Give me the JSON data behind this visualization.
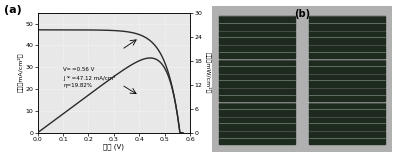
{
  "panel_a_label": "(a)",
  "panel_b_label": "(b)",
  "xlabel": "电压 (V)",
  "ylabel_left": "电流（mA/cm²）",
  "ylabel_right": "功率（mW/cm²）",
  "xlim": [
    0.0,
    0.6
  ],
  "ylim_left": [
    0,
    55
  ],
  "ylim_right": [
    0,
    30
  ],
  "yticks_left": [
    0,
    10,
    20,
    30,
    40,
    50
  ],
  "yticks_right": [
    0,
    6,
    12,
    18,
    24,
    30
  ],
  "xticks": [
    0.0,
    0.1,
    0.2,
    0.3,
    0.4,
    0.5,
    0.6
  ],
  "annotation_line1": "V   =0.56 V",
  "annotation_line2": "J    =47.12 mA/cm²",
  "annotation_line3": "η=19.82%",
  "Voc": 0.56,
  "Jsc": 47.12,
  "bg_color": "#e8e8e8",
  "line_color": "#2a2a2a",
  "grid_color": "#ffffff",
  "cell_color_dark": "#1e2a1e",
  "cell_line_color": "#7a8a7a",
  "bg_panel_b": "#b0b0b0",
  "col_border_color": "#888888"
}
